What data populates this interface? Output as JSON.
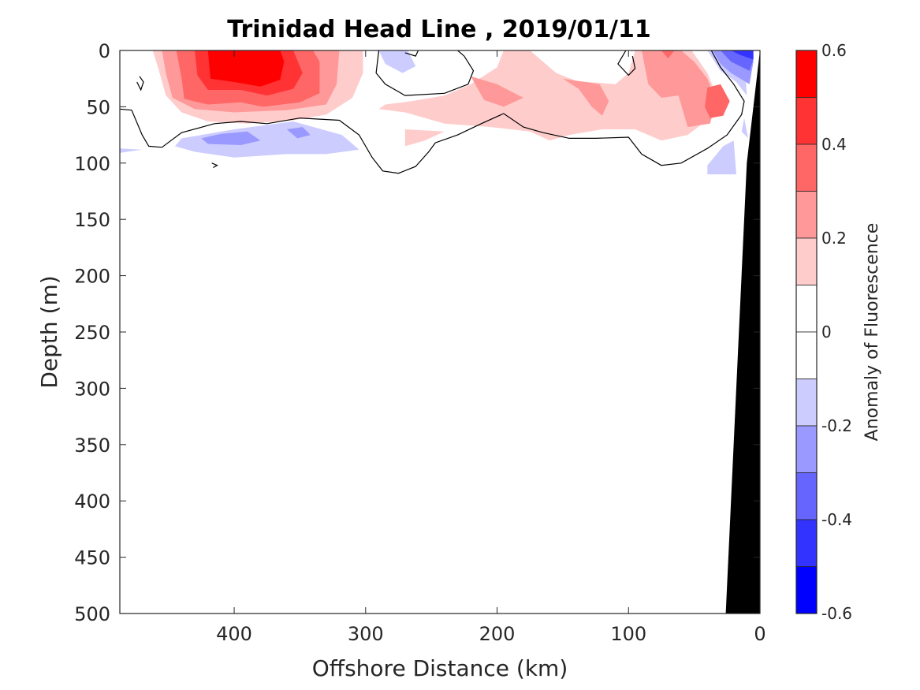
{
  "chart_data": {
    "type": "heatmap",
    "subtype": "filled-contour-section",
    "title": "Trinidad Head Line , 2019/01/11",
    "xlabel": "Offshore Distance (km)",
    "ylabel": "Depth (m)",
    "xlim": [
      487,
      0
    ],
    "ylim": [
      0,
      500
    ],
    "x_reversed": true,
    "y_reversed": true,
    "xticks": [
      400,
      300,
      200,
      100,
      0
    ],
    "xtick_labels": [
      "400",
      "300",
      "200",
      "100",
      "0"
    ],
    "yticks": [
      0,
      50,
      100,
      150,
      200,
      250,
      300,
      350,
      400,
      450,
      500
    ],
    "ytick_labels": [
      "0",
      "50",
      "100",
      "150",
      "200",
      "250",
      "300",
      "350",
      "400",
      "450",
      "500"
    ],
    "colorbar": {
      "label": "Anomaly of Fluorescence",
      "range": [
        -0.6,
        0.6
      ],
      "ticks": [
        0.6,
        0.4,
        0.2,
        0,
        -0.2,
        -0.4,
        -0.6
      ],
      "tick_labels": [
        "0.6",
        "0.4",
        "0.2",
        "0",
        "-0.2",
        "-0.4",
        "-0.6"
      ],
      "levels": [
        {
          "min": 0.5,
          "max": 0.6,
          "color": "#ff0000"
        },
        {
          "min": 0.4,
          "max": 0.5,
          "color": "#ff3333"
        },
        {
          "min": 0.3,
          "max": 0.4,
          "color": "#ff6666"
        },
        {
          "min": 0.2,
          "max": 0.3,
          "color": "#ff9999"
        },
        {
          "min": 0.1,
          "max": 0.2,
          "color": "#ffcccc"
        },
        {
          "min": 0.0,
          "max": 0.1,
          "color": "#ffffff"
        },
        {
          "min": -0.1,
          "max": 0.0,
          "color": "#ffffff"
        },
        {
          "min": -0.2,
          "max": -0.1,
          "color": "#ccccff"
        },
        {
          "min": -0.3,
          "max": -0.2,
          "color": "#9999ff"
        },
        {
          "min": -0.4,
          "max": -0.3,
          "color": "#6666ff"
        },
        {
          "min": -0.5,
          "max": -0.4,
          "color": "#3333ff"
        },
        {
          "min": -0.6,
          "max": -0.5,
          "color": "#0000ff"
        }
      ]
    },
    "bathymetry": {
      "color": "#000000",
      "points_km_m": [
        [
          0,
          0
        ],
        [
          0,
          500
        ],
        [
          26,
          500
        ],
        [
          10,
          100
        ],
        [
          0,
          0
        ]
      ]
    },
    "regions": [
      {
        "level": 0.1,
        "points_km_m": [
          [
            462,
            0
          ],
          [
            458,
            15
          ],
          [
            452,
            40
          ],
          [
            440,
            55
          ],
          [
            420,
            63
          ],
          [
            390,
            65
          ],
          [
            355,
            62
          ],
          [
            330,
            57
          ],
          [
            310,
            42
          ],
          [
            302,
            20
          ],
          [
            302,
            0
          ]
        ]
      },
      {
        "level": 0.2,
        "points_km_m": [
          [
            455,
            0
          ],
          [
            452,
            20
          ],
          [
            447,
            42
          ],
          [
            430,
            52
          ],
          [
            400,
            55
          ],
          [
            360,
            53
          ],
          [
            330,
            48
          ],
          [
            322,
            30
          ],
          [
            320,
            0
          ]
        ]
      },
      {
        "level": 0.3,
        "points_km_m": [
          [
            444,
            0
          ],
          [
            440,
            25
          ],
          [
            438,
            43
          ],
          [
            420,
            48
          ],
          [
            395,
            46
          ],
          [
            378,
            50
          ],
          [
            350,
            46
          ],
          [
            335,
            38
          ],
          [
            335,
            10
          ],
          [
            340,
            0
          ]
        ]
      },
      {
        "level": 0.4,
        "points_km_m": [
          [
            430,
            0
          ],
          [
            428,
            22
          ],
          [
            420,
            35
          ],
          [
            395,
            35
          ],
          [
            375,
            40
          ],
          [
            355,
            34
          ],
          [
            348,
            20
          ],
          [
            355,
            0
          ]
        ]
      },
      {
        "level": 0.5,
        "points_km_m": [
          [
            420,
            0
          ],
          [
            418,
            25
          ],
          [
            400,
            28
          ],
          [
            380,
            32
          ],
          [
            365,
            26
          ],
          [
            362,
            10
          ],
          [
            365,
            0
          ]
        ]
      },
      {
        "level": 0.1,
        "points_km_m": [
          [
            290,
            52
          ],
          [
            270,
            55
          ],
          [
            240,
            65
          ],
          [
            205,
            68
          ],
          [
            175,
            72
          ],
          [
            160,
            80
          ],
          [
            145,
            75
          ],
          [
            120,
            70
          ],
          [
            95,
            70
          ],
          [
            75,
            80
          ],
          [
            55,
            75
          ],
          [
            38,
            60
          ],
          [
            33,
            40
          ],
          [
            40,
            20
          ],
          [
            52,
            0
          ],
          [
            95,
            0
          ],
          [
            100,
            20
          ],
          [
            110,
            30
          ],
          [
            140,
            27
          ],
          [
            155,
            20
          ],
          [
            175,
            0
          ],
          [
            195,
            0
          ],
          [
            200,
            15
          ],
          [
            220,
            30
          ],
          [
            240,
            40
          ],
          [
            265,
            45
          ],
          [
            285,
            48
          ]
        ]
      },
      {
        "level": 0.1,
        "points_km_m": [
          [
            270,
            85
          ],
          [
            255,
            80
          ],
          [
            240,
            72
          ],
          [
            270,
            70
          ]
        ]
      },
      {
        "level": 0.2,
        "points_km_m": [
          [
            220,
            23
          ],
          [
            200,
            30
          ],
          [
            180,
            42
          ],
          [
            195,
            50
          ],
          [
            210,
            44
          ]
        ]
      },
      {
        "level": 0.2,
        "points_km_m": [
          [
            150,
            25
          ],
          [
            138,
            34
          ],
          [
            128,
            50
          ],
          [
            120,
            58
          ],
          [
            115,
            45
          ],
          [
            122,
            30
          ]
        ]
      },
      {
        "level": 0.2,
        "points_km_m": [
          [
            90,
            0
          ],
          [
            85,
            30
          ],
          [
            75,
            42
          ],
          [
            62,
            40
          ],
          [
            55,
            68
          ],
          [
            38,
            65
          ],
          [
            33,
            45
          ],
          [
            40,
            25
          ],
          [
            50,
            10
          ],
          [
            60,
            0
          ]
        ]
      },
      {
        "level": 0.3,
        "points_km_m": [
          [
            75,
            0
          ],
          [
            70,
            7
          ],
          [
            65,
            0
          ]
        ]
      },
      {
        "level": 0.3,
        "points_km_m": [
          [
            40,
            33
          ],
          [
            30,
            30
          ],
          [
            23,
            45
          ],
          [
            28,
            58
          ],
          [
            38,
            60
          ],
          [
            42,
            50
          ]
        ]
      },
      {
        "level": -0.1,
        "points_km_m": [
          [
            440,
            78
          ],
          [
            400,
            70
          ],
          [
            355,
            63
          ],
          [
            318,
            75
          ],
          [
            305,
            88
          ],
          [
            330,
            92
          ],
          [
            360,
            92
          ],
          [
            400,
            95
          ],
          [
            430,
            90
          ],
          [
            445,
            85
          ]
        ]
      },
      {
        "level": -0.2,
        "points_km_m": [
          [
            410,
            74
          ],
          [
            390,
            72
          ],
          [
            380,
            80
          ],
          [
            395,
            84
          ],
          [
            420,
            83
          ],
          [
            425,
            78
          ]
        ]
      },
      {
        "level": -0.2,
        "points_km_m": [
          [
            360,
            70
          ],
          [
            348,
            68
          ],
          [
            342,
            75
          ],
          [
            352,
            78
          ]
        ]
      },
      {
        "level": -0.1,
        "points_km_m": [
          [
            487,
            87
          ],
          [
            470,
            88
          ],
          [
            487,
            91
          ]
        ]
      },
      {
        "level": -0.1,
        "points_km_m": [
          [
            290,
            0
          ],
          [
            285,
            12
          ],
          [
            272,
            20
          ],
          [
            262,
            14
          ],
          [
            268,
            0
          ]
        ]
      },
      {
        "level": -0.1,
        "points_km_m": [
          [
            40,
            0
          ],
          [
            30,
            18
          ],
          [
            18,
            28
          ],
          [
            10,
            40
          ],
          [
            12,
            0
          ]
        ]
      },
      {
        "level": -0.2,
        "points_km_m": [
          [
            36,
            0
          ],
          [
            30,
            12
          ],
          [
            22,
            20
          ],
          [
            8,
            30
          ],
          [
            5,
            10
          ],
          [
            8,
            0
          ]
        ]
      },
      {
        "level": -0.3,
        "points_km_m": [
          [
            30,
            0
          ],
          [
            22,
            10
          ],
          [
            8,
            18
          ],
          [
            5,
            8
          ],
          [
            6,
            0
          ]
        ]
      },
      {
        "level": -0.4,
        "points_km_m": [
          [
            22,
            0
          ],
          [
            15,
            4
          ],
          [
            5,
            8
          ],
          [
            5,
            0
          ]
        ]
      },
      {
        "level": -0.1,
        "points_km_m": [
          [
            35,
            95
          ],
          [
            28,
            85
          ],
          [
            20,
            80
          ],
          [
            18,
            110
          ],
          [
            40,
            110
          ],
          [
            40,
            102
          ]
        ]
      },
      {
        "level": -0.1,
        "points_km_m": [
          [
            12,
            60
          ],
          [
            9,
            78
          ],
          [
            14,
            72
          ]
        ]
      }
    ],
    "zero_contours_km_m": [
      [
        [
          487,
          52
        ],
        [
          478,
          53
        ],
        [
          470,
          75
        ],
        [
          465,
          85
        ],
        [
          455,
          86
        ],
        [
          440,
          73
        ],
        [
          415,
          65
        ],
        [
          395,
          63
        ],
        [
          375,
          65
        ],
        [
          350,
          60
        ],
        [
          320,
          62
        ],
        [
          305,
          75
        ],
        [
          295,
          95
        ],
        [
          287,
          107
        ],
        [
          275,
          109
        ],
        [
          262,
          103
        ],
        [
          252,
          90
        ],
        [
          247,
          82
        ],
        [
          230,
          75
        ],
        [
          212,
          65
        ],
        [
          195,
          56
        ],
        [
          180,
          68
        ],
        [
          165,
          73
        ],
        [
          145,
          78
        ],
        [
          125,
          78
        ],
        [
          100,
          77
        ],
        [
          90,
          92
        ],
        [
          75,
          102
        ],
        [
          60,
          100
        ],
        [
          40,
          87
        ],
        [
          25,
          75
        ],
        [
          14,
          57
        ],
        [
          12,
          45
        ],
        [
          20,
          30
        ],
        [
          30,
          15
        ],
        [
          37,
          0
        ]
      ],
      [
        [
          290,
          0
        ],
        [
          292,
          20
        ],
        [
          285,
          30
        ],
        [
          270,
          40
        ],
        [
          240,
          38
        ],
        [
          222,
          30
        ],
        [
          218,
          18
        ],
        [
          225,
          5
        ],
        [
          230,
          0
        ]
      ],
      [
        [
          102,
          0
        ],
        [
          108,
          12
        ],
        [
          100,
          22
        ],
        [
          95,
          16
        ],
        [
          97,
          5
        ]
      ],
      [
        [
          472,
          23
        ],
        [
          469,
          28
        ],
        [
          471,
          35
        ],
        [
          474,
          28
        ]
      ],
      [
        [
          417,
          100
        ],
        [
          413,
          102
        ],
        [
          416,
          104
        ]
      ],
      [
        [
          270,
          2
        ],
        [
          262,
          5
        ],
        [
          260,
          0
        ]
      ]
    ]
  }
}
